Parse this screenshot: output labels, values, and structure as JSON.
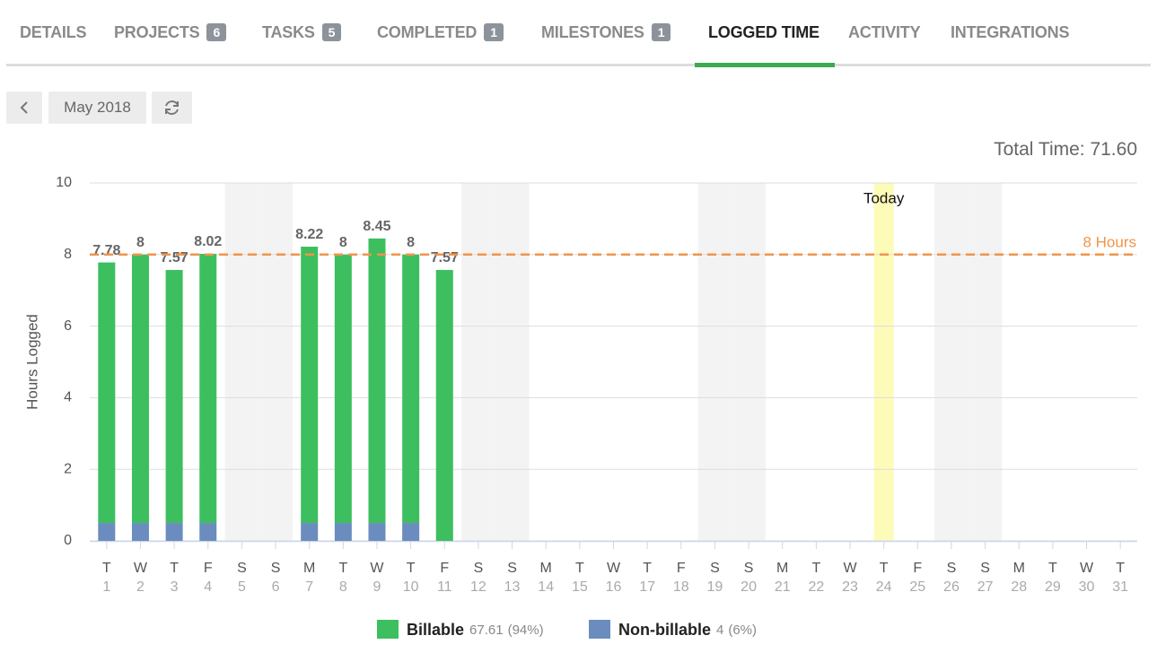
{
  "tabs": [
    {
      "label": "DETAILS"
    },
    {
      "label": "PROJECTS",
      "count": 6
    },
    {
      "label": "TASKS",
      "count": 5
    },
    {
      "label": "COMPLETED",
      "count": 1
    },
    {
      "label": "MILESTONES",
      "count": 1
    },
    {
      "label": "LOGGED TIME",
      "active": true
    },
    {
      "label": "ACTIVITY"
    },
    {
      "label": "INTEGRATIONS"
    }
  ],
  "controls": {
    "month": "May 2018"
  },
  "total_time": "Total Time: 71.60",
  "chart_data": {
    "type": "stacked_bar",
    "y_label": "Hours Logged",
    "categories": [
      "1",
      "2",
      "3",
      "4",
      "5",
      "6",
      "7",
      "8",
      "9",
      "10",
      "11",
      "12",
      "13",
      "14",
      "15",
      "16",
      "17",
      "18",
      "19",
      "20",
      "21",
      "22",
      "23",
      "24",
      "25",
      "26",
      "27",
      "28",
      "29",
      "30",
      "31"
    ],
    "weekdays": [
      "T",
      "W",
      "T",
      "F",
      "S",
      "S",
      "M",
      "T",
      "W",
      "T",
      "F",
      "S",
      "S",
      "M",
      "T",
      "W",
      "T",
      "F",
      "S",
      "S",
      "M",
      "T",
      "W",
      "T",
      "F",
      "S",
      "S",
      "M",
      "T",
      "W",
      "T"
    ],
    "series": [
      {
        "name": "Non-billable",
        "color": "#6b8cbe",
        "legend_total": 4,
        "legend_share": "(6%)",
        "values": [
          0.5,
          0.5,
          0.5,
          0.5,
          null,
          null,
          0.5,
          0.5,
          0.5,
          0.5,
          0,
          null,
          null,
          null,
          null,
          null,
          null,
          null,
          null,
          null,
          null,
          null,
          null,
          null,
          null,
          null,
          null,
          null,
          null,
          null,
          null
        ]
      },
      {
        "name": "Billable",
        "color": "#3dbf5f",
        "legend_total": 67.61,
        "legend_share": "(94%)",
        "values": [
          7.28,
          7.5,
          7.07,
          7.52,
          null,
          null,
          7.72,
          7.5,
          7.95,
          7.5,
          7.57,
          null,
          null,
          null,
          null,
          null,
          null,
          null,
          null,
          null,
          null,
          null,
          null,
          null,
          null,
          null,
          null,
          null,
          null,
          null,
          null
        ]
      }
    ],
    "totals": [
      7.78,
      8,
      7.57,
      8.02,
      null,
      null,
      8.22,
      8,
      8.45,
      8,
      7.57,
      null,
      null,
      null,
      null,
      null,
      null,
      null,
      null,
      null,
      null,
      null,
      null,
      null,
      null,
      null,
      null,
      null,
      null,
      null,
      null
    ],
    "ylim": [
      0,
      10
    ],
    "yticks": [
      0,
      2,
      4,
      6,
      8,
      10
    ],
    "grid": true,
    "reference_line": {
      "value": 8,
      "label": "8 Hours",
      "color": "#f0954a"
    },
    "highlight": {
      "category": "24",
      "label": "Today",
      "color": "#fdfbb8"
    },
    "weekend_color": "#f3f3f3"
  }
}
